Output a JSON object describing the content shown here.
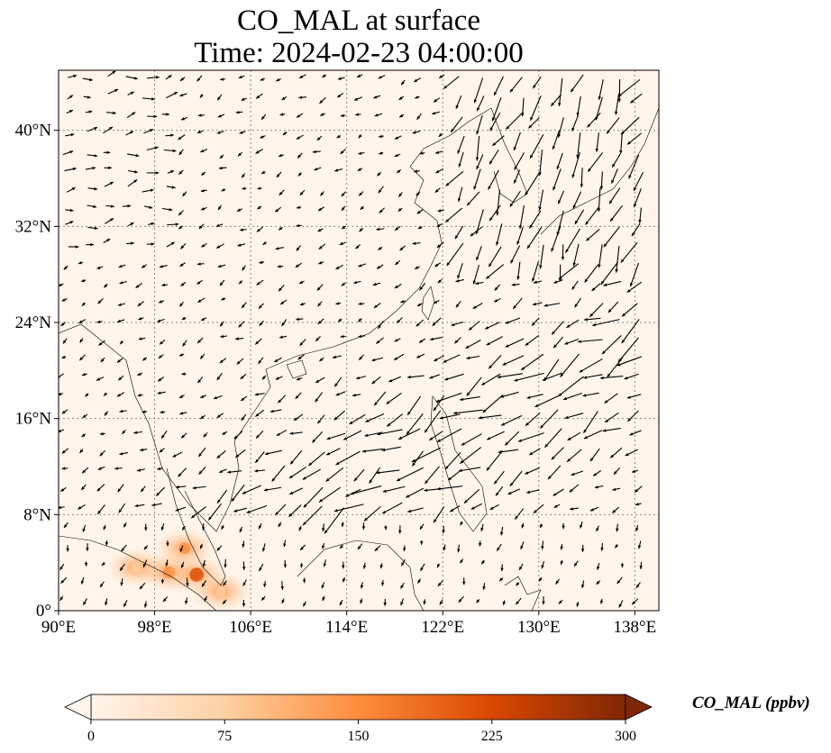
{
  "chart_data": {
    "type": "heatmap",
    "overlay": "wind-vectors",
    "title": "CO_MAL at surface",
    "subtitle": "Time: 2024-02-23 04:00:00",
    "x_ticks": [
      "90°E",
      "98°E",
      "106°E",
      "114°E",
      "122°E",
      "130°E",
      "138°E"
    ],
    "y_ticks": [
      "0°",
      "8°N",
      "16°N",
      "24°N",
      "32°N",
      "40°N"
    ],
    "x_tick_values": [
      90,
      98,
      106,
      114,
      122,
      130,
      138
    ],
    "y_tick_values": [
      0,
      8,
      16,
      24,
      32,
      40
    ],
    "xlim": [
      90,
      140
    ],
    "ylim": [
      0,
      45
    ],
    "grid": true,
    "colorbar": {
      "label": "CO_MAL (ppbv)",
      "ticks": [
        "0",
        "75",
        "150",
        "225",
        "300"
      ],
      "tick_values": [
        0,
        75,
        150,
        225,
        300
      ],
      "range": [
        0,
        300
      ],
      "colormap": [
        "#fff5eb",
        "#fdd0a2",
        "#fd8d3c",
        "#d94801",
        "#7f2704"
      ],
      "extend": "both"
    },
    "hotspots": [
      {
        "lon": 96.5,
        "lat": 3.6,
        "value": 110
      },
      {
        "lon": 99.2,
        "lat": 3.2,
        "value": 170
      },
      {
        "lon": 101.5,
        "lat": 3.0,
        "value": 230
      },
      {
        "lon": 100.5,
        "lat": 5.2,
        "value": 140
      },
      {
        "lon": 103.5,
        "lat": 1.6,
        "value": 80
      }
    ],
    "background_value": 12
  }
}
